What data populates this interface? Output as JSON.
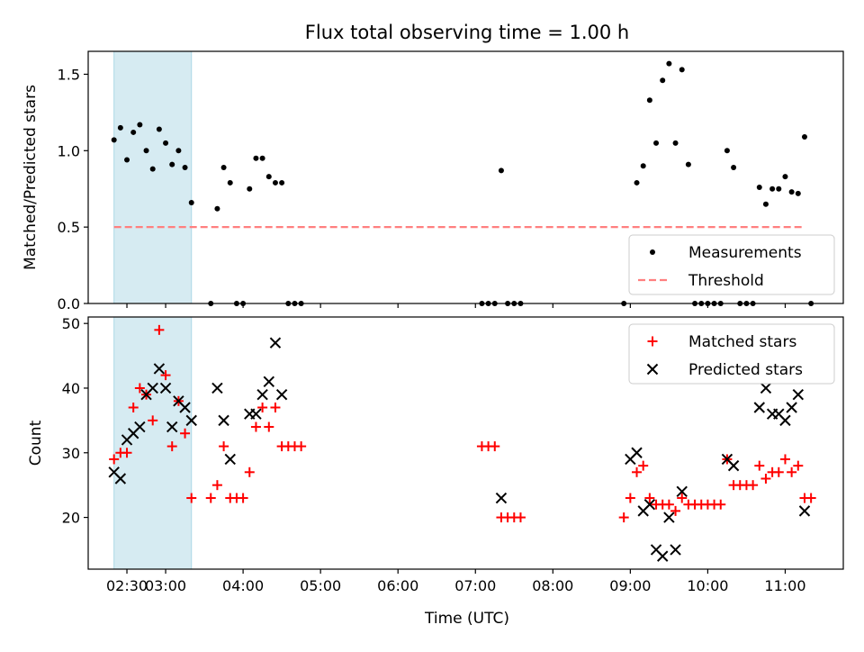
{
  "chart_data": [
    {
      "type": "scatter",
      "title": "Flux total observing time = 1.00 h",
      "xlabel": "",
      "ylabel": "Matched/Predicted stars",
      "xlim": [
        "02:00",
        "11:45"
      ],
      "ylim": [
        0,
        1.65
      ],
      "yticks": [
        "0.0",
        "0.5",
        "1.0",
        "1.5"
      ],
      "threshold": 0.5,
      "highlight_span": [
        "02:20",
        "03:20"
      ],
      "legend_position": "lower right",
      "series": [
        {
          "name": "Measurements",
          "color": "#000000",
          "marker": "dot",
          "points": [
            [
              "02:20",
              1.07
            ],
            [
              "02:25",
              1.15
            ],
            [
              "02:30",
              0.94
            ],
            [
              "02:35",
              1.12
            ],
            [
              "02:40",
              1.17
            ],
            [
              "02:45",
              1.0
            ],
            [
              "02:50",
              0.88
            ],
            [
              "02:55",
              1.14
            ],
            [
              "03:00",
              1.05
            ],
            [
              "03:05",
              0.91
            ],
            [
              "03:10",
              1.0
            ],
            [
              "03:15",
              0.89
            ],
            [
              "03:20",
              0.66
            ],
            [
              "03:35",
              0.0
            ],
            [
              "03:40",
              0.62
            ],
            [
              "03:45",
              0.89
            ],
            [
              "03:50",
              0.79
            ],
            [
              "03:55",
              0.0
            ],
            [
              "04:00",
              0.0
            ],
            [
              "04:05",
              0.75
            ],
            [
              "04:10",
              0.95
            ],
            [
              "04:15",
              0.95
            ],
            [
              "04:20",
              0.83
            ],
            [
              "04:25",
              0.79
            ],
            [
              "04:30",
              0.79
            ],
            [
              "04:35",
              0.0
            ],
            [
              "04:40",
              0.0
            ],
            [
              "04:45",
              0.0
            ],
            [
              "07:05",
              0.0
            ],
            [
              "07:10",
              0.0
            ],
            [
              "07:15",
              0.0
            ],
            [
              "07:20",
              0.87
            ],
            [
              "07:25",
              0.0
            ],
            [
              "07:30",
              0.0
            ],
            [
              "07:35",
              0.0
            ],
            [
              "08:55",
              0.0
            ],
            [
              "09:05",
              0.79
            ],
            [
              "09:10",
              0.9
            ],
            [
              "09:15",
              1.33
            ],
            [
              "09:20",
              1.05
            ],
            [
              "09:25",
              1.46
            ],
            [
              "09:30",
              1.57
            ],
            [
              "09:35",
              1.05
            ],
            [
              "09:40",
              1.53
            ],
            [
              "09:45",
              0.91
            ],
            [
              "09:50",
              0.0
            ],
            [
              "09:55",
              0.0
            ],
            [
              "10:00",
              0.0
            ],
            [
              "10:05",
              0.0
            ],
            [
              "10:10",
              0.0
            ],
            [
              "10:15",
              1.0
            ],
            [
              "10:20",
              0.89
            ],
            [
              "10:25",
              0.0
            ],
            [
              "10:30",
              0.0
            ],
            [
              "10:35",
              0.0
            ],
            [
              "10:40",
              0.76
            ],
            [
              "10:45",
              0.65
            ],
            [
              "10:50",
              0.75
            ],
            [
              "10:55",
              0.75
            ],
            [
              "11:00",
              0.83
            ],
            [
              "11:05",
              0.73
            ],
            [
              "11:10",
              0.72
            ],
            [
              "11:15",
              1.09
            ],
            [
              "11:20",
              0.0
            ]
          ]
        },
        {
          "name": "Threshold",
          "color": "#ff7f7f",
          "style": "dashed",
          "points": [
            [
              "02:20",
              0.5
            ],
            [
              "11:15",
              0.5
            ]
          ]
        }
      ]
    },
    {
      "type": "scatter",
      "title": "",
      "xlabel": "Time (UTC)",
      "ylabel": "Count",
      "xlim": [
        "02:00",
        "11:45"
      ],
      "ylim": [
        12,
        51
      ],
      "xticks": [
        "02:30",
        "03:00",
        "04:00",
        "05:00",
        "06:00",
        "07:00",
        "08:00",
        "09:00",
        "10:00",
        "11:00"
      ],
      "yticks": [
        "20",
        "30",
        "40",
        "50"
      ],
      "highlight_span": [
        "02:20",
        "03:20"
      ],
      "legend_position": "upper right",
      "series": [
        {
          "name": "Matched stars",
          "color": "#ff0000",
          "marker": "+",
          "points": [
            [
              "02:20",
              29
            ],
            [
              "02:25",
              30
            ],
            [
              "02:30",
              30
            ],
            [
              "02:35",
              37
            ],
            [
              "02:40",
              40
            ],
            [
              "02:45",
              39
            ],
            [
              "02:50",
              35
            ],
            [
              "02:55",
              49
            ],
            [
              "03:00",
              42
            ],
            [
              "03:05",
              31
            ],
            [
              "03:10",
              38
            ],
            [
              "03:15",
              33
            ],
            [
              "03:20",
              23
            ],
            [
              "03:35",
              23
            ],
            [
              "03:40",
              25
            ],
            [
              "03:45",
              31
            ],
            [
              "03:50",
              23
            ],
            [
              "03:55",
              23
            ],
            [
              "04:00",
              23
            ],
            [
              "04:05",
              27
            ],
            [
              "04:10",
              34
            ],
            [
              "04:15",
              37
            ],
            [
              "04:20",
              34
            ],
            [
              "04:25",
              37
            ],
            [
              "04:30",
              31
            ],
            [
              "04:35",
              31
            ],
            [
              "04:40",
              31
            ],
            [
              "04:45",
              31
            ],
            [
              "07:05",
              31
            ],
            [
              "07:10",
              31
            ],
            [
              "07:15",
              31
            ],
            [
              "07:20",
              20
            ],
            [
              "07:25",
              20
            ],
            [
              "07:30",
              20
            ],
            [
              "07:35",
              20
            ],
            [
              "08:55",
              20
            ],
            [
              "09:00",
              23
            ],
            [
              "09:05",
              27
            ],
            [
              "09:10",
              28
            ],
            [
              "09:15",
              23
            ],
            [
              "09:20",
              22
            ],
            [
              "09:25",
              22
            ],
            [
              "09:30",
              22
            ],
            [
              "09:35",
              21
            ],
            [
              "09:40",
              23
            ],
            [
              "09:45",
              22
            ],
            [
              "09:50",
              22
            ],
            [
              "09:55",
              22
            ],
            [
              "10:00",
              22
            ],
            [
              "10:05",
              22
            ],
            [
              "10:10",
              22
            ],
            [
              "10:15",
              29
            ],
            [
              "10:20",
              25
            ],
            [
              "10:25",
              25
            ],
            [
              "10:30",
              25
            ],
            [
              "10:35",
              25
            ],
            [
              "10:40",
              28
            ],
            [
              "10:45",
              26
            ],
            [
              "10:50",
              27
            ],
            [
              "10:55",
              27
            ],
            [
              "11:00",
              29
            ],
            [
              "11:05",
              27
            ],
            [
              "11:10",
              28
            ],
            [
              "11:15",
              23
            ],
            [
              "11:20",
              23
            ]
          ]
        },
        {
          "name": "Predicted stars",
          "color": "#000000",
          "marker": "x",
          "points": [
            [
              "02:20",
              27
            ],
            [
              "02:25",
              26
            ],
            [
              "02:30",
              32
            ],
            [
              "02:35",
              33
            ],
            [
              "02:40",
              34
            ],
            [
              "02:45",
              39
            ],
            [
              "02:50",
              40
            ],
            [
              "02:55",
              43
            ],
            [
              "03:00",
              40
            ],
            [
              "03:05",
              34
            ],
            [
              "03:10",
              38
            ],
            [
              "03:15",
              37
            ],
            [
              "03:20",
              35
            ],
            [
              "03:40",
              40
            ],
            [
              "03:45",
              35
            ],
            [
              "03:50",
              29
            ],
            [
              "04:05",
              36
            ],
            [
              "04:10",
              36
            ],
            [
              "04:15",
              39
            ],
            [
              "04:20",
              41
            ],
            [
              "04:25",
              47
            ],
            [
              "04:30",
              39
            ],
            [
              "07:20",
              23
            ],
            [
              "09:00",
              29
            ],
            [
              "09:05",
              30
            ],
            [
              "09:10",
              21
            ],
            [
              "09:15",
              22
            ],
            [
              "09:20",
              15
            ],
            [
              "09:25",
              14
            ],
            [
              "09:30",
              20
            ],
            [
              "09:35",
              15
            ],
            [
              "09:40",
              24
            ],
            [
              "10:15",
              29
            ],
            [
              "10:20",
              28
            ],
            [
              "10:40",
              37
            ],
            [
              "10:45",
              40
            ],
            [
              "10:50",
              36
            ],
            [
              "10:55",
              36
            ],
            [
              "11:00",
              35
            ],
            [
              "11:05",
              37
            ],
            [
              "11:10",
              39
            ],
            [
              "11:15",
              21
            ]
          ]
        }
      ]
    }
  ]
}
